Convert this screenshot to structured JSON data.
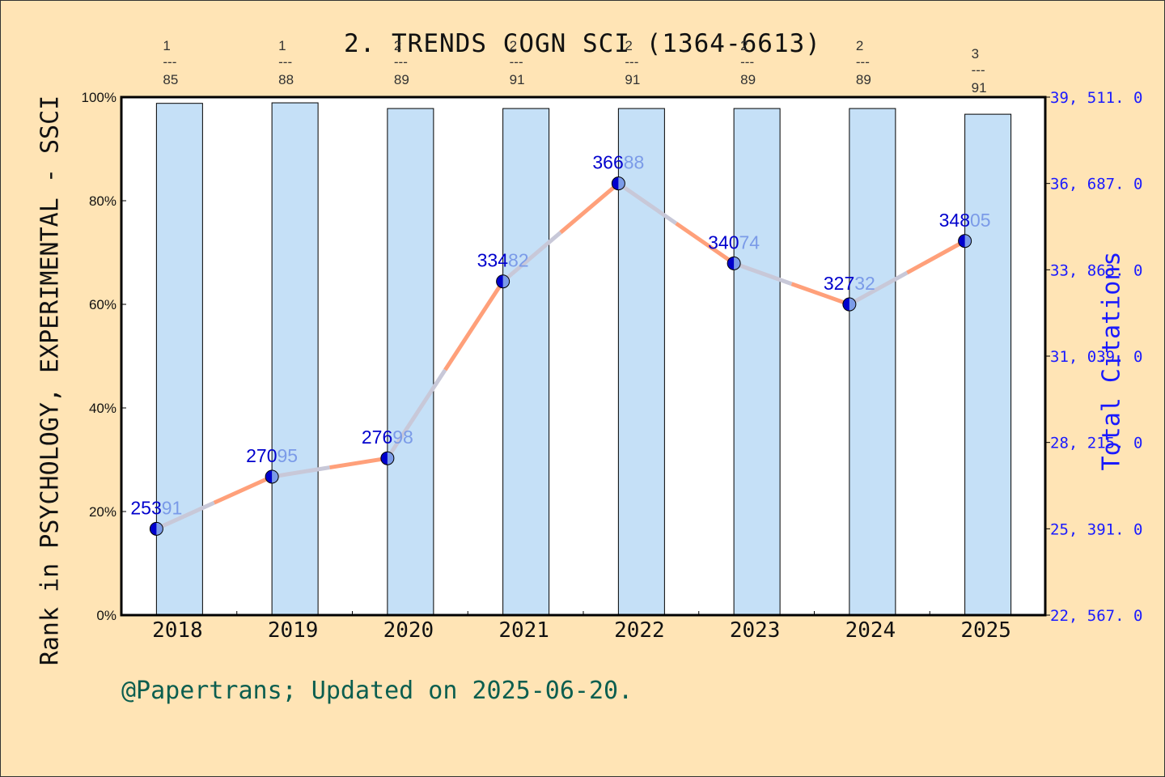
{
  "chart": {
    "title": "2. TRENDS COGN SCI (1364-6613)",
    "left_axis_label": "Rank in PSYCHOLOGY, EXPERIMENTAL - SSCI",
    "right_axis_label": "Total Citations",
    "footer": "@Papertrans; Updated on 2025-06-20.",
    "colors": {
      "background": "#FFE4B5",
      "plot_bg": "#FFFFFF",
      "bar_fill": "#C5E0F7",
      "line_up": "#FFA07A",
      "line_down": "#C8C8D8",
      "marker_dark": "#0000CD",
      "marker_light": "#7B9BE8",
      "right_axis": "#1a1aff",
      "footer": "#0B5E4F"
    }
  },
  "chart_data": {
    "type": "bar+line",
    "title": "2. TRENDS COGN SCI (1364-6613)",
    "categories": [
      "2018",
      "2019",
      "2020",
      "2021",
      "2022",
      "2023",
      "2024",
      "2025"
    ],
    "series": [
      {
        "name": "Rank percentile in PSYCHOLOGY, EXPERIMENTAL - SSCI",
        "type": "bar",
        "axis": "left",
        "rank_labels": [
          "1/85",
          "1/88",
          "2/89",
          "2/91",
          "2/91",
          "2/89",
          "2/89",
          "3/91"
        ],
        "values": [
          98.8,
          98.9,
          97.8,
          97.8,
          97.8,
          97.8,
          97.8,
          96.7
        ]
      },
      {
        "name": "Total Citations",
        "type": "line",
        "axis": "right",
        "values": [
          25391,
          27095,
          27698,
          33482,
          36688,
          34074,
          32732,
          34805
        ]
      }
    ],
    "left_axis": {
      "label": "Rank in PSYCHOLOGY, EXPERIMENTAL - SSCI",
      "ticks": [
        "0%",
        "20%",
        "40%",
        "60%",
        "80%",
        "100%"
      ],
      "ylim": [
        0,
        100
      ]
    },
    "right_axis": {
      "label": "Total Citations",
      "ticks": [
        "22,567.0",
        "25,391.0",
        "28,215.0",
        "31,039.0",
        "33,863.0",
        "36,687.0",
        "39,511.0"
      ],
      "ylim": [
        22567,
        39511
      ]
    },
    "xlabel": "",
    "grid": false,
    "legend": "none"
  }
}
